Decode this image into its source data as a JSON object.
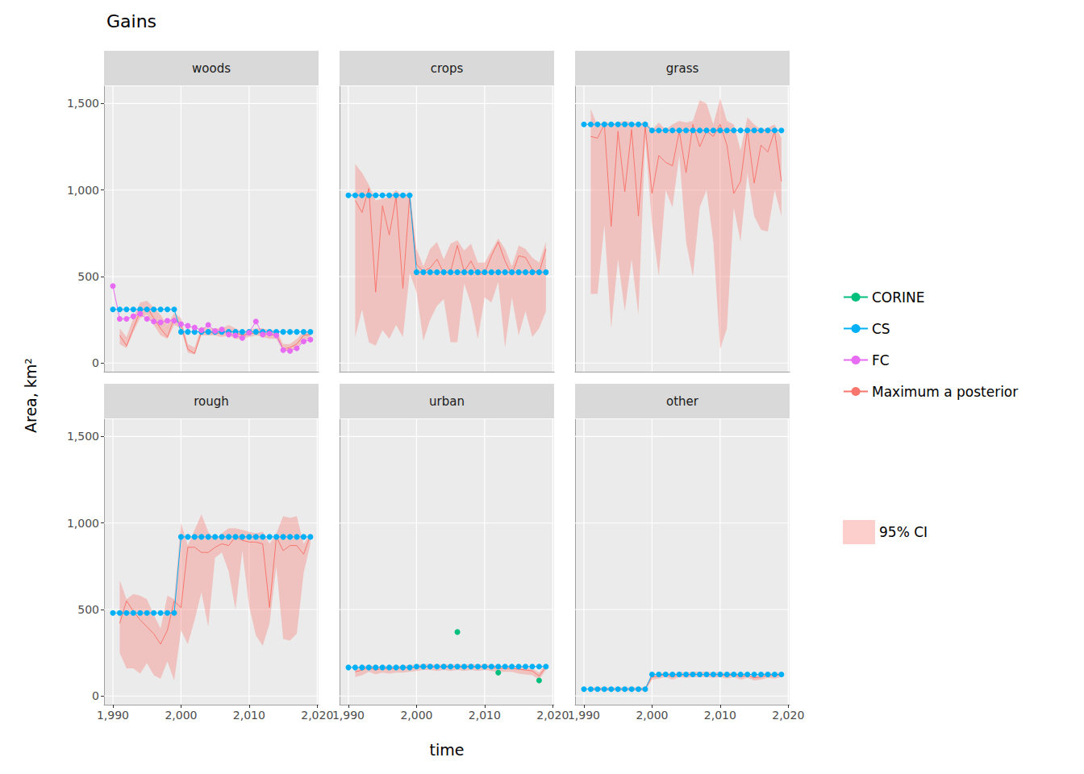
{
  "chart_data": {
    "type": "line",
    "title": "Gains",
    "xlabel": "time",
    "ylabel": "Area, km²",
    "x": [
      1990,
      1991,
      1992,
      1993,
      1994,
      1995,
      1996,
      1997,
      1998,
      1999,
      2000,
      2001,
      2002,
      2003,
      2004,
      2005,
      2006,
      2007,
      2008,
      2009,
      2010,
      2011,
      2012,
      2013,
      2014,
      2015,
      2016,
      2017,
      2018,
      2019
    ],
    "xlim": [
      1988.7,
      2020.2
    ],
    "xticks": [
      1990,
      2000,
      2010,
      2020
    ],
    "ylim": [
      -50,
      1600
    ],
    "yticks": [
      0,
      500,
      1000,
      1500
    ],
    "grid": true,
    "legend": "right",
    "panels": [
      {
        "title": "woods",
        "series": [
          {
            "name": "CS",
            "color": "#00B0F6",
            "marker": "circle",
            "values": [
              310,
              310,
              310,
              310,
              310,
              310,
              310,
              310,
              310,
              310,
              180,
              180,
              180,
              180,
              180,
              180,
              180,
              180,
              180,
              180,
              180,
              180,
              180,
              180,
              180,
              180,
              180,
              180,
              180,
              180
            ]
          },
          {
            "name": "FC",
            "color": "#E76BF3",
            "marker": "circle",
            "values": [
              445,
              255,
              255,
              270,
              285,
              255,
              240,
              235,
              245,
              245,
              225,
              215,
              205,
              190,
              220,
              185,
              195,
              165,
              160,
              145,
              175,
              240,
              165,
              170,
              160,
              75,
              70,
              85,
              125,
              135
            ]
          },
          {
            "name": "Maximum a posterior",
            "color": "#F8766D",
            "marker": "none",
            "values": [
              null,
              160,
              100,
              200,
              300,
              320,
              260,
              200,
              150,
              260,
              220,
              80,
              55,
              180,
              175,
              175,
              170,
              190,
              175,
              160,
              170,
              175,
              175,
              160,
              165,
              80,
              90,
              110,
              160,
              165
            ]
          }
        ],
        "ci": {
          "name": "95% CI",
          "color": "#F8766D",
          "lower": [
            null,
            110,
            85,
            180,
            260,
            280,
            220,
            160,
            140,
            220,
            200,
            60,
            50,
            160,
            160,
            160,
            150,
            160,
            140,
            140,
            150,
            160,
            150,
            140,
            140,
            70,
            70,
            90,
            130,
            140
          ],
          "upper": [
            null,
            200,
            150,
            260,
            350,
            360,
            320,
            280,
            220,
            290,
            260,
            110,
            90,
            210,
            200,
            200,
            200,
            220,
            200,
            180,
            190,
            200,
            200,
            190,
            190,
            110,
            110,
            140,
            180,
            180
          ]
        }
      },
      {
        "title": "crops",
        "series": [
          {
            "name": "CS",
            "color": "#00B0F6",
            "marker": "circle",
            "values": [
              970,
              970,
              970,
              970,
              970,
              970,
              970,
              970,
              970,
              970,
              525,
              525,
              525,
              525,
              525,
              525,
              525,
              525,
              525,
              525,
              525,
              525,
              525,
              525,
              525,
              525,
              525,
              525,
              525,
              525
            ]
          },
          {
            "name": "Maximum a posterior",
            "color": "#F8766D",
            "marker": "none",
            "values": [
              null,
              940,
              870,
              1010,
              410,
              910,
              740,
              960,
              430,
              970,
              570,
              530,
              550,
              600,
              520,
              530,
              680,
              530,
              590,
              510,
              520,
              620,
              700,
              590,
              510,
              620,
              610,
              540,
              520,
              660
            ]
          }
        ],
        "ci": {
          "name": "95% CI",
          "color": "#F8766D",
          "lower": [
            null,
            150,
            310,
            120,
            100,
            190,
            140,
            220,
            150,
            520,
            410,
            130,
            250,
            330,
            370,
            120,
            120,
            460,
            340,
            140,
            380,
            350,
            470,
            90,
            380,
            160,
            300,
            150,
            200,
            300
          ],
          "upper": [
            null,
            1150,
            1100,
            1030,
            940,
            950,
            960,
            1000,
            960,
            990,
            660,
            560,
            660,
            700,
            600,
            690,
            710,
            650,
            690,
            580,
            580,
            650,
            720,
            660,
            560,
            680,
            660,
            610,
            580,
            700
          ]
        }
      },
      {
        "title": "grass",
        "series": [
          {
            "name": "CS",
            "color": "#00B0F6",
            "marker": "circle",
            "values": [
              1380,
              1380,
              1380,
              1380,
              1380,
              1380,
              1380,
              1380,
              1380,
              1380,
              1345,
              1345,
              1345,
              1345,
              1345,
              1345,
              1345,
              1345,
              1345,
              1345,
              1345,
              1345,
              1345,
              1345,
              1345,
              1345,
              1345,
              1345,
              1345,
              1345
            ]
          },
          {
            "name": "Maximum a posterior",
            "color": "#F8766D",
            "marker": "none",
            "values": [
              null,
              1310,
              1300,
              1380,
              790,
              1340,
              990,
              1350,
              850,
              1370,
              980,
              1200,
              1160,
              1140,
              1340,
              1100,
              1380,
              1250,
              1340,
              1310,
              1380,
              1260,
              980,
              1050,
              1350,
              1040,
              1260,
              1220,
              1340,
              1050
            ]
          }
        ],
        "ci": {
          "name": "95% CI",
          "color": "#F8766D",
          "lower": [
            null,
            400,
            400,
            800,
            200,
            600,
            300,
            600,
            280,
            1300,
            800,
            500,
            1000,
            900,
            1200,
            700,
            500,
            900,
            1000,
            700,
            80,
            200,
            900,
            700,
            1100,
            850,
            770,
            760,
            1000,
            850
          ],
          "upper": [
            null,
            1470,
            1370,
            1400,
            1380,
            1390,
            1400,
            1390,
            1380,
            1400,
            1350,
            1390,
            1350,
            1380,
            1400,
            1390,
            1400,
            1520,
            1500,
            1380,
            1530,
            1400,
            1380,
            1230,
            1420,
            1380,
            1350,
            1360,
            1380,
            1300
          ]
        }
      },
      {
        "title": "rough",
        "series": [
          {
            "name": "CS",
            "color": "#00B0F6",
            "marker": "circle",
            "values": [
              480,
              480,
              480,
              480,
              480,
              480,
              480,
              480,
              480,
              480,
              920,
              920,
              920,
              920,
              920,
              920,
              920,
              920,
              920,
              920,
              920,
              920,
              920,
              920,
              920,
              920,
              920,
              920,
              920,
              920
            ]
          },
          {
            "name": "Maximum a posterior",
            "color": "#F8766D",
            "marker": "none",
            "values": [
              null,
              420,
              550,
              490,
              440,
              400,
              360,
              300,
              380,
              550,
              510,
              860,
              860,
              830,
              830,
              860,
              880,
              870,
              920,
              900,
              890,
              890,
              880,
              510,
              920,
              840,
              870,
              870,
              820,
              930
            ]
          }
        ],
        "ci": {
          "name": "95% CI",
          "color": "#F8766D",
          "lower": [
            null,
            250,
            160,
            160,
            130,
            190,
            120,
            100,
            200,
            90,
            380,
            300,
            440,
            600,
            400,
            800,
            830,
            720,
            500,
            840,
            520,
            350,
            290,
            420,
            750,
            330,
            320,
            360,
            710,
            880
          ],
          "upper": [
            null,
            670,
            560,
            590,
            580,
            560,
            470,
            390,
            580,
            560,
            1000,
            870,
            960,
            1050,
            950,
            900,
            940,
            970,
            970,
            960,
            950,
            940,
            950,
            880,
            940,
            1040,
            1030,
            1040,
            880,
            940
          ]
        }
      },
      {
        "title": "urban",
        "series": [
          {
            "name": "CS",
            "color": "#00B0F6",
            "marker": "circle",
            "values": [
              165,
              165,
              165,
              165,
              165,
              165,
              165,
              165,
              165,
              165,
              170,
              170,
              170,
              170,
              170,
              170,
              170,
              170,
              170,
              170,
              170,
              170,
              170,
              170,
              170,
              170,
              170,
              170,
              170,
              170
            ]
          },
          {
            "name": "CORINE",
            "color": "#00BF7D",
            "marker": "circle",
            "values": [
              null,
              null,
              null,
              null,
              null,
              null,
              null,
              null,
              null,
              null,
              null,
              null,
              null,
              null,
              null,
              null,
              370,
              null,
              null,
              null,
              null,
              null,
              135,
              null,
              null,
              null,
              null,
              null,
              90,
              null
            ]
          },
          {
            "name": "Maximum a posterior",
            "color": "#F8766D",
            "marker": "none",
            "values": [
              null,
              140,
              150,
              165,
              150,
              160,
              155,
              160,
              160,
              165,
              165,
              170,
              170,
              165,
              170,
              165,
              170,
              165,
              170,
              165,
              170,
              165,
              160,
              160,
              160,
              155,
              150,
              145,
              115,
              170
            ]
          }
        ],
        "ci": {
          "name": "95% CI",
          "color": "#F8766D",
          "lower": [
            null,
            110,
            120,
            140,
            125,
            135,
            130,
            135,
            135,
            140,
            145,
            150,
            150,
            145,
            150,
            145,
            150,
            145,
            150,
            145,
            150,
            145,
            140,
            140,
            140,
            130,
            125,
            120,
            95,
            150
          ],
          "upper": [
            null,
            160,
            170,
            180,
            170,
            175,
            170,
            175,
            175,
            180,
            180,
            185,
            185,
            180,
            185,
            180,
            185,
            180,
            185,
            180,
            185,
            180,
            175,
            175,
            175,
            170,
            165,
            160,
            135,
            185
          ]
        }
      },
      {
        "title": "other",
        "series": [
          {
            "name": "CS",
            "color": "#00B0F6",
            "marker": "circle",
            "values": [
              40,
              40,
              40,
              40,
              40,
              40,
              40,
              40,
              40,
              40,
              125,
              125,
              125,
              125,
              125,
              125,
              125,
              125,
              125,
              125,
              125,
              125,
              125,
              125,
              125,
              125,
              125,
              125,
              125,
              125
            ]
          },
          {
            "name": "Maximum a posterior",
            "color": "#F8766D",
            "marker": "none",
            "values": [
              null,
              40,
              40,
              40,
              40,
              40,
              40,
              40,
              40,
              40,
              110,
              115,
              125,
              110,
              125,
              120,
              125,
              125,
              125,
              120,
              125,
              115,
              125,
              110,
              120,
              105,
              110,
              120,
              115,
              125
            ]
          }
        ],
        "ci": {
          "name": "95% CI",
          "color": "#F8766D",
          "lower": [
            null,
            30,
            30,
            30,
            30,
            30,
            30,
            30,
            30,
            30,
            95,
            100,
            110,
            95,
            110,
            105,
            110,
            110,
            110,
            105,
            110,
            100,
            110,
            95,
            105,
            90,
            95,
            105,
            100,
            110
          ],
          "upper": [
            null,
            50,
            50,
            50,
            50,
            50,
            50,
            50,
            50,
            50,
            125,
            130,
            140,
            125,
            140,
            135,
            140,
            140,
            140,
            135,
            140,
            130,
            140,
            125,
            135,
            120,
            125,
            135,
            130,
            140
          ]
        }
      }
    ]
  }
}
